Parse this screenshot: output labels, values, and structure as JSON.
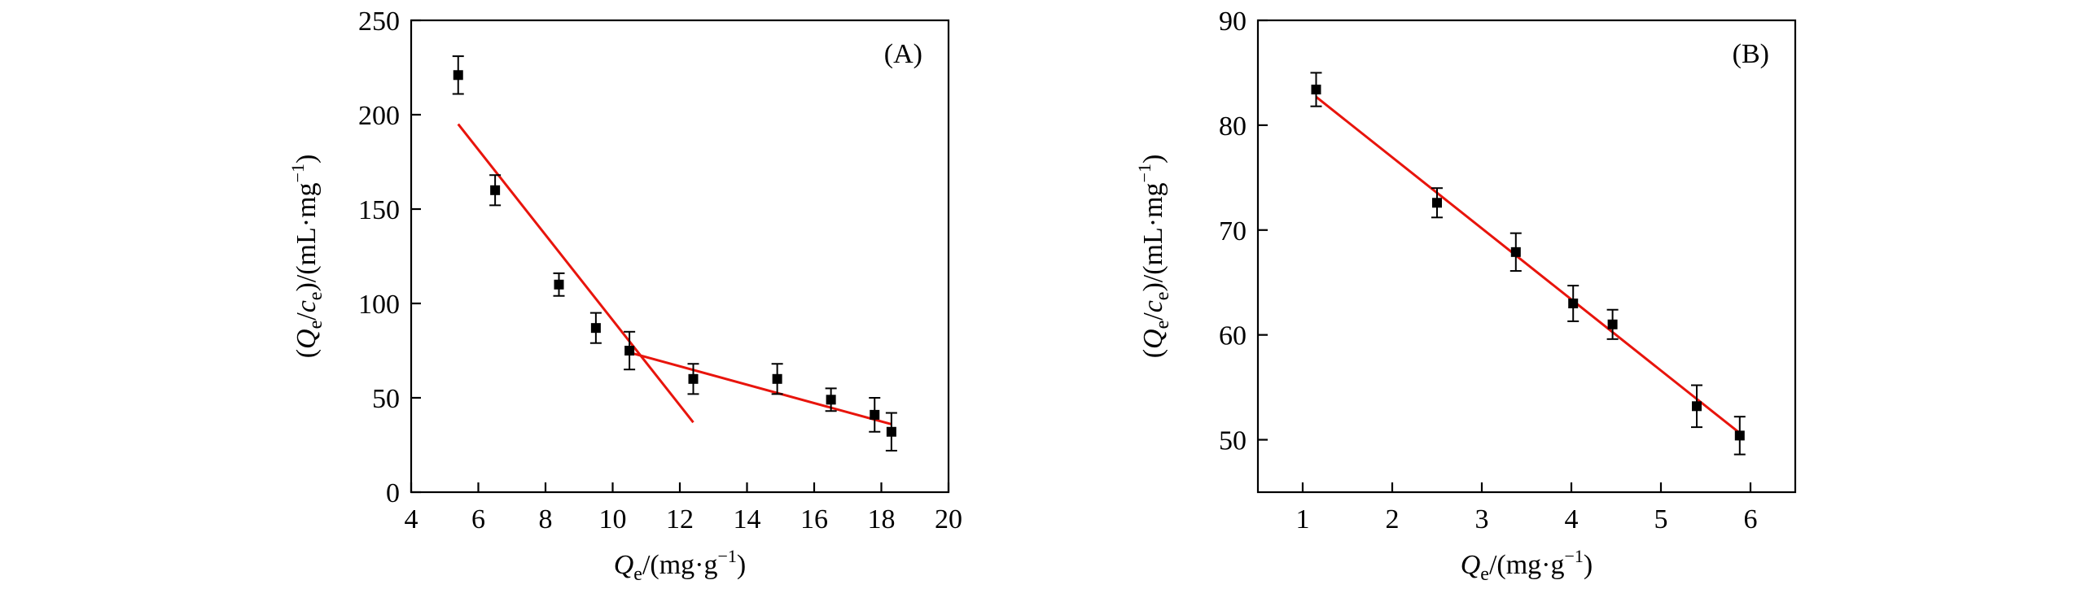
{
  "colors": {
    "fit_line": "#e8140c",
    "marker": "#000000",
    "axis": "#000000"
  },
  "chart_data": [
    {
      "type": "scatter",
      "panel_label": "(A)",
      "xlabel": {
        "main": "Q",
        "sub": "e",
        "rest": "/(mg·g",
        "sup": "−1",
        "close": ")"
      },
      "ylabel": {
        "p1": "(Q",
        "sub1": "e",
        "p2": "/c",
        "sub2": "e",
        "p3": ")/(mL·mg",
        "sup": "−1",
        "p4": ")"
      },
      "xlim": [
        4,
        20
      ],
      "ylim": [
        0,
        250
      ],
      "xticks": [
        4,
        6,
        8,
        10,
        12,
        14,
        16,
        18,
        20
      ],
      "yticks": [
        0,
        50,
        100,
        150,
        200,
        250
      ],
      "series": [
        {
          "points": [
            {
              "x": 5.4,
              "y": 221,
              "err": 10
            },
            {
              "x": 6.5,
              "y": 160,
              "err": 8
            },
            {
              "x": 8.4,
              "y": 110,
              "err": 6
            },
            {
              "x": 9.5,
              "y": 87,
              "err": 8
            },
            {
              "x": 10.5,
              "y": 75,
              "err": 10
            },
            {
              "x": 12.4,
              "y": 60,
              "err": 8
            },
            {
              "x": 14.9,
              "y": 60,
              "err": 8
            },
            {
              "x": 16.5,
              "y": 49,
              "err": 6
            },
            {
              "x": 17.8,
              "y": 41,
              "err": 9
            },
            {
              "x": 18.3,
              "y": 32,
              "err": 10
            }
          ]
        }
      ],
      "fit_lines": [
        {
          "x": [
            5.4,
            12.4
          ],
          "y": [
            195,
            37
          ]
        },
        {
          "x": [
            10.5,
            18.3
          ],
          "y": [
            74,
            36
          ]
        }
      ]
    },
    {
      "type": "scatter",
      "panel_label": "(B)",
      "xlabel": {
        "main": "Q",
        "sub": "e",
        "rest": "/(mg·g",
        "sup": "−1",
        "close": ")"
      },
      "ylabel": {
        "p1": "(Q",
        "sub1": "e",
        "p2": "/c",
        "sub2": "e",
        "p3": ")/(mL·mg",
        "sup": "−1",
        "p4": ")"
      },
      "xlim": [
        0.5,
        6.5
      ],
      "ylim": [
        45,
        90
      ],
      "xticks": [
        1,
        2,
        3,
        4,
        5,
        6
      ],
      "yticks": [
        50,
        60,
        70,
        80,
        90
      ],
      "series": [
        {
          "points": [
            {
              "x": 1.15,
              "y": 83.4,
              "err": 1.6
            },
            {
              "x": 2.5,
              "y": 72.6,
              "err": 1.4
            },
            {
              "x": 3.38,
              "y": 67.9,
              "err": 1.8
            },
            {
              "x": 4.02,
              "y": 63.0,
              "err": 1.7
            },
            {
              "x": 4.46,
              "y": 61.0,
              "err": 1.4
            },
            {
              "x": 5.4,
              "y": 53.2,
              "err": 2.0
            },
            {
              "x": 5.88,
              "y": 50.4,
              "err": 1.8
            }
          ]
        }
      ],
      "fit_lines": [
        {
          "x": [
            1.15,
            5.9
          ],
          "y": [
            82.7,
            50.5
          ]
        }
      ]
    }
  ]
}
